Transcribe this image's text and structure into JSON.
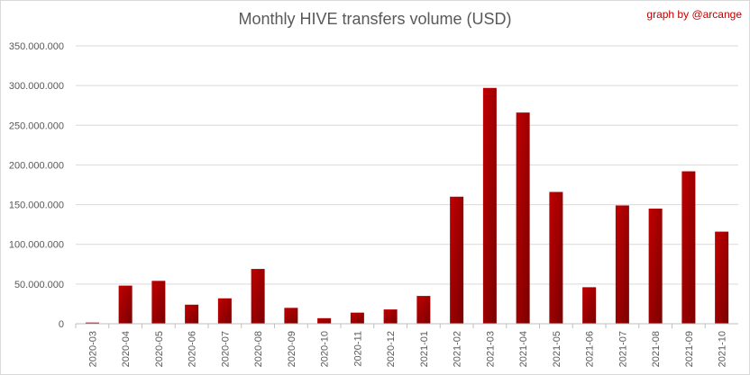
{
  "chart_data": {
    "type": "bar",
    "title": "Monthly HIVE transfers volume (USD)",
    "xlabel": "",
    "ylabel": "",
    "categories": [
      "2020-03",
      "2020-04",
      "2020-05",
      "2020-06",
      "2020-07",
      "2020-08",
      "2020-09",
      "2020-10",
      "2020-11",
      "2020-12",
      "2021-01",
      "2021-02",
      "2021-03",
      "2021-04",
      "2021-05",
      "2021-06",
      "2021-07",
      "2021-08",
      "2021-09",
      "2021-10"
    ],
    "values": [
      1500000,
      48000000,
      54000000,
      24000000,
      32000000,
      69000000,
      20000000,
      7000000,
      14000000,
      18000000,
      35000000,
      160000000,
      297000000,
      266000000,
      166000000,
      46000000,
      149000000,
      145000000,
      192000000,
      116000000
    ],
    "ylim": [
      0,
      350000000
    ],
    "yticks": [
      0,
      50000000,
      100000000,
      150000000,
      200000000,
      250000000,
      300000000,
      350000000
    ],
    "ytick_labels": [
      "0",
      "50.000.000",
      "100.000.000",
      "150.000.000",
      "200.000.000",
      "250.000.000",
      "300.000.000",
      "350.000.000"
    ],
    "grid": true,
    "legend": "none",
    "bar_color": "#c00000",
    "bar_color_dark": "#7a0000"
  },
  "watermark": {
    "text": "graph by @arcange",
    "color": "#c00000"
  }
}
